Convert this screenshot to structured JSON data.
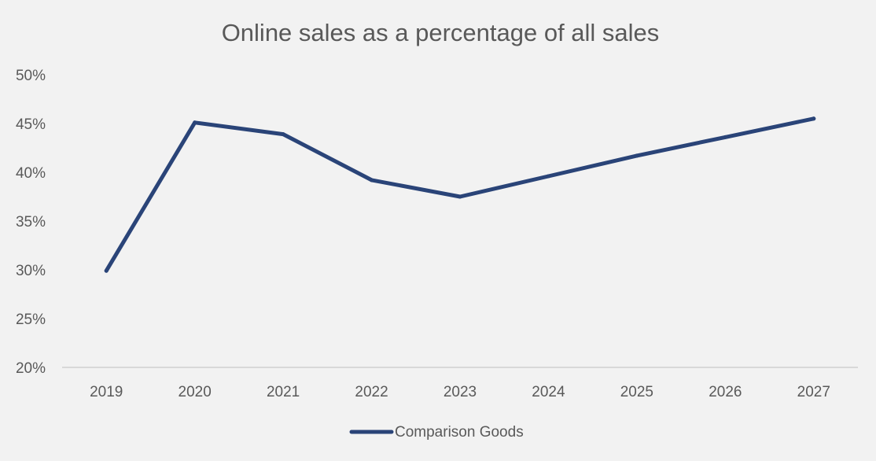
{
  "chart_data": {
    "type": "line",
    "title": "Online sales as a percentage of all sales",
    "xlabel": "",
    "ylabel": "",
    "categories": [
      "2019",
      "2020",
      "2021",
      "2022",
      "2023",
      "2024",
      "2025",
      "2026",
      "2027"
    ],
    "series": [
      {
        "name": "Comparison Goods",
        "values": [
          29.9,
          45.1,
          43.9,
          39.2,
          37.5,
          39.6,
          41.7,
          43.6,
          45.5
        ],
        "color": "#2a4478"
      }
    ],
    "ylim": [
      20,
      50
    ],
    "yticks": [
      "20%",
      "25%",
      "30%",
      "35%",
      "40%",
      "45%",
      "50%"
    ],
    "yticks_values": [
      20,
      25,
      30,
      35,
      40,
      45,
      50
    ],
    "grid": false,
    "legend_position": "bottom",
    "colors": {
      "background": "#f2f2f2",
      "axis": "#bfbfbf",
      "text": "#595959"
    }
  }
}
